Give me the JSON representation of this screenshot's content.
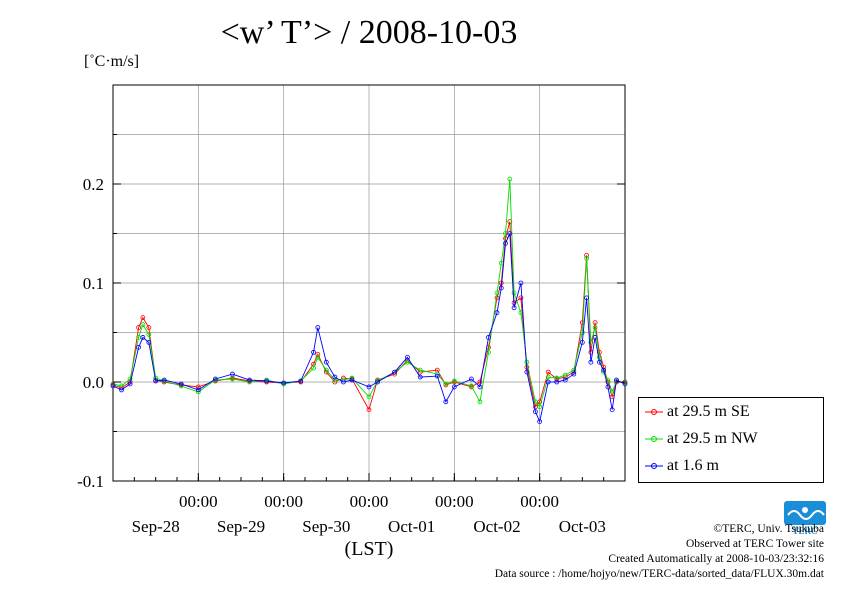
{
  "chart_data": {
    "type": "line",
    "title": "<w’ T’> / 2008-10-03",
    "ylabel": "[˚C·m/s]",
    "xlabel": "(LST)",
    "ylim": [
      -0.1,
      0.3
    ],
    "yticks": [
      -0.1,
      0.0,
      0.1,
      0.2
    ],
    "ytick_labels": [
      "-0.1",
      "0.0",
      "0.1",
      "0.2"
    ],
    "xlim": [
      0,
      6
    ],
    "x_unit": "days since 2008-09-27 12:00 LST",
    "xticks": [
      1,
      2,
      3,
      4,
      5
    ],
    "xtick_time_labels": [
      "00:00",
      "00:00",
      "00:00",
      "00:00",
      "00:00"
    ],
    "day_labels": [
      {
        "x": 0.5,
        "label": "Sep-28"
      },
      {
        "x": 1.5,
        "label": "Sep-29"
      },
      {
        "x": 2.5,
        "label": "Sep-30"
      },
      {
        "x": 3.5,
        "label": "Oct-01"
      },
      {
        "x": 4.5,
        "label": "Oct-02"
      },
      {
        "x": 5.5,
        "label": "Oct-03"
      }
    ],
    "grid": true,
    "legend_position": "right",
    "series": [
      {
        "name": "at 29.5 m SE",
        "color": "#ff0000",
        "points": [
          [
            0.0,
            -0.003
          ],
          [
            0.1,
            -0.006
          ],
          [
            0.2,
            0.0
          ],
          [
            0.3,
            0.055
          ],
          [
            0.35,
            0.065
          ],
          [
            0.42,
            0.055
          ],
          [
            0.5,
            0.002
          ],
          [
            0.6,
            0.0
          ],
          [
            0.8,
            -0.003
          ],
          [
            1.0,
            -0.005
          ],
          [
            1.2,
            0.001
          ],
          [
            1.4,
            0.004
          ],
          [
            1.6,
            0.001
          ],
          [
            1.8,
            0.0
          ],
          [
            2.0,
            -0.001
          ],
          [
            2.2,
            0.0
          ],
          [
            2.35,
            0.018
          ],
          [
            2.4,
            0.028
          ],
          [
            2.5,
            0.01
          ],
          [
            2.6,
            0.0
          ],
          [
            2.7,
            0.004
          ],
          [
            2.8,
            0.003
          ],
          [
            3.0,
            -0.028
          ],
          [
            3.1,
            0.002
          ],
          [
            3.3,
            0.008
          ],
          [
            3.45,
            0.022
          ],
          [
            3.6,
            0.01
          ],
          [
            3.8,
            0.012
          ],
          [
            3.9,
            -0.003
          ],
          [
            4.0,
            0.0
          ],
          [
            4.2,
            -0.005
          ],
          [
            4.3,
            0.0
          ],
          [
            4.4,
            0.035
          ],
          [
            4.5,
            0.085
          ],
          [
            4.55,
            0.1
          ],
          [
            4.6,
            0.145
          ],
          [
            4.65,
            0.162
          ],
          [
            4.7,
            0.08
          ],
          [
            4.78,
            0.085
          ],
          [
            4.85,
            0.015
          ],
          [
            4.95,
            -0.025
          ],
          [
            5.0,
            -0.02
          ],
          [
            5.1,
            0.01
          ],
          [
            5.2,
            0.003
          ],
          [
            5.3,
            0.005
          ],
          [
            5.4,
            0.01
          ],
          [
            5.5,
            0.06
          ],
          [
            5.55,
            0.128
          ],
          [
            5.6,
            0.03
          ],
          [
            5.65,
            0.06
          ],
          [
            5.7,
            0.03
          ],
          [
            5.75,
            0.015
          ],
          [
            5.8,
            0.0
          ],
          [
            5.85,
            -0.015
          ],
          [
            5.9,
            0.0
          ],
          [
            6.0,
            0.0
          ]
        ]
      },
      {
        "name": "at 29.5 m NW",
        "color": "#00dd00",
        "points": [
          [
            0.0,
            -0.002
          ],
          [
            0.1,
            -0.004
          ],
          [
            0.2,
            0.003
          ],
          [
            0.3,
            0.045
          ],
          [
            0.35,
            0.058
          ],
          [
            0.42,
            0.048
          ],
          [
            0.5,
            0.004
          ],
          [
            0.6,
            0.001
          ],
          [
            0.8,
            -0.004
          ],
          [
            1.0,
            -0.01
          ],
          [
            1.2,
            0.002
          ],
          [
            1.4,
            0.003
          ],
          [
            1.6,
            0.0
          ],
          [
            1.8,
            0.002
          ],
          [
            2.0,
            -0.002
          ],
          [
            2.2,
            0.001
          ],
          [
            2.35,
            0.014
          ],
          [
            2.4,
            0.025
          ],
          [
            2.5,
            0.012
          ],
          [
            2.6,
            0.002
          ],
          [
            2.7,
            0.002
          ],
          [
            2.8,
            0.004
          ],
          [
            3.0,
            -0.015
          ],
          [
            3.1,
            0.001
          ],
          [
            3.3,
            0.01
          ],
          [
            3.45,
            0.02
          ],
          [
            3.6,
            0.012
          ],
          [
            3.8,
            0.008
          ],
          [
            3.9,
            -0.002
          ],
          [
            4.0,
            0.001
          ],
          [
            4.2,
            -0.004
          ],
          [
            4.3,
            -0.02
          ],
          [
            4.4,
            0.03
          ],
          [
            4.5,
            0.09
          ],
          [
            4.55,
            0.12
          ],
          [
            4.6,
            0.15
          ],
          [
            4.65,
            0.205
          ],
          [
            4.7,
            0.09
          ],
          [
            4.78,
            0.07
          ],
          [
            4.85,
            0.02
          ],
          [
            4.95,
            -0.02
          ],
          [
            5.0,
            -0.025
          ],
          [
            5.1,
            0.005
          ],
          [
            5.2,
            0.004
          ],
          [
            5.3,
            0.007
          ],
          [
            5.4,
            0.012
          ],
          [
            5.5,
            0.05
          ],
          [
            5.55,
            0.125
          ],
          [
            5.6,
            0.04
          ],
          [
            5.65,
            0.055
          ],
          [
            5.7,
            0.025
          ],
          [
            5.75,
            0.01
          ],
          [
            5.8,
            0.002
          ],
          [
            5.85,
            -0.01
          ],
          [
            5.9,
            0.001
          ],
          [
            6.0,
            -0.001
          ]
        ]
      },
      {
        "name": "at 1.6 m",
        "color": "#0000ff",
        "points": [
          [
            0.0,
            -0.004
          ],
          [
            0.1,
            -0.008
          ],
          [
            0.2,
            -0.002
          ],
          [
            0.3,
            0.035
          ],
          [
            0.35,
            0.045
          ],
          [
            0.42,
            0.04
          ],
          [
            0.5,
            0.001
          ],
          [
            0.6,
            0.002
          ],
          [
            0.8,
            -0.002
          ],
          [
            1.0,
            -0.008
          ],
          [
            1.2,
            0.003
          ],
          [
            1.4,
            0.008
          ],
          [
            1.6,
            0.002
          ],
          [
            1.8,
            0.001
          ],
          [
            2.0,
            -0.001
          ],
          [
            2.2,
            0.001
          ],
          [
            2.35,
            0.03
          ],
          [
            2.4,
            0.055
          ],
          [
            2.5,
            0.02
          ],
          [
            2.6,
            0.005
          ],
          [
            2.7,
            0.0
          ],
          [
            2.8,
            0.002
          ],
          [
            3.0,
            -0.005
          ],
          [
            3.1,
            0.0
          ],
          [
            3.3,
            0.01
          ],
          [
            3.45,
            0.025
          ],
          [
            3.6,
            0.005
          ],
          [
            3.8,
            0.006
          ],
          [
            3.9,
            -0.02
          ],
          [
            4.0,
            -0.005
          ],
          [
            4.2,
            0.003
          ],
          [
            4.3,
            -0.005
          ],
          [
            4.4,
            0.045
          ],
          [
            4.5,
            0.07
          ],
          [
            4.55,
            0.095
          ],
          [
            4.6,
            0.14
          ],
          [
            4.65,
            0.15
          ],
          [
            4.7,
            0.075
          ],
          [
            4.78,
            0.1
          ],
          [
            4.85,
            0.01
          ],
          [
            4.95,
            -0.03
          ],
          [
            5.0,
            -0.04
          ],
          [
            5.1,
            0.0
          ],
          [
            5.2,
            0.0
          ],
          [
            5.3,
            0.002
          ],
          [
            5.4,
            0.008
          ],
          [
            5.5,
            0.04
          ],
          [
            5.55,
            0.085
          ],
          [
            5.6,
            0.02
          ],
          [
            5.65,
            0.045
          ],
          [
            5.7,
            0.02
          ],
          [
            5.75,
            0.012
          ],
          [
            5.8,
            -0.005
          ],
          [
            5.85,
            -0.028
          ],
          [
            5.9,
            0.002
          ],
          [
            6.0,
            -0.002
          ]
        ]
      }
    ]
  },
  "credits": {
    "copyright": "©TERC, Univ. Tsukuba",
    "observed": "Observed at TERC Tower site",
    "created": "Created Automatically at 2008-10-03/23:32:16",
    "source": "Data source : /home/hojyo/new/TERC-data/sorted_data/FLUX.30m.dat"
  },
  "logo": {
    "name": "terc-logo",
    "text": "TERC",
    "color": "#1a8fd8"
  }
}
